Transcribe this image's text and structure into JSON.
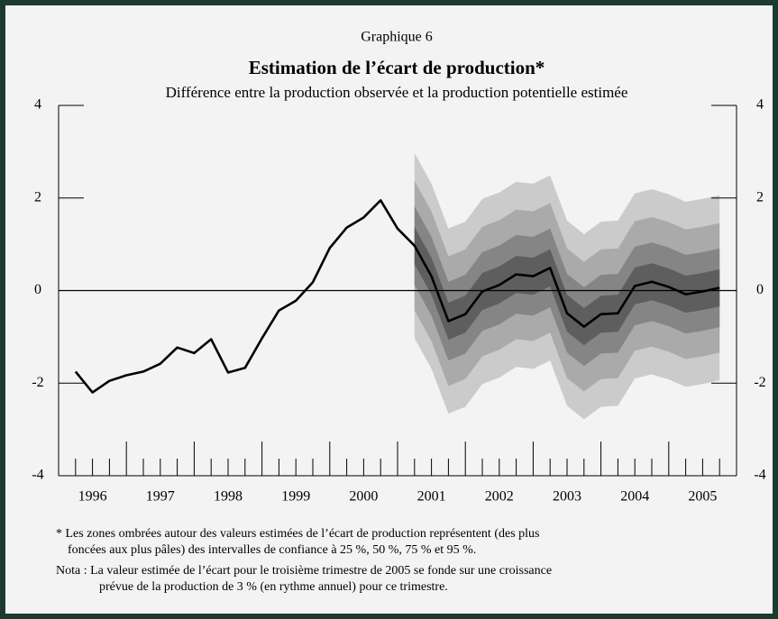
{
  "chart_data": {
    "type": "fan",
    "header": "Graphique 6",
    "title": "Estimation de l’écart de production*",
    "subtitle": "Différence entre la production observée et la production potentielle estimée",
    "categories": [
      null,
      null,
      null,
      null,
      null,
      null,
      null,
      null,
      null,
      null,
      null,
      null,
      null,
      null,
      null,
      null,
      null,
      null,
      null,
      null,
      null,
      null,
      null,
      null,
      null,
      null,
      null,
      null,
      null,
      null,
      null,
      null,
      null,
      null,
      null,
      null,
      null,
      null,
      null
    ],
    "year_labels": [
      "1996",
      "1997",
      "1998",
      "1999",
      "2000",
      "2001",
      "2002",
      "2003",
      "2004",
      "2005"
    ],
    "series": [
      {
        "color": "#000000",
        "values": [
          -1.75,
          -2.2,
          -1.95,
          -1.83,
          -1.75,
          -1.58,
          -1.23,
          -1.35,
          -1.05,
          -1.77,
          -1.67,
          -1.03,
          -0.43,
          -0.22,
          0.18,
          0.92,
          1.36,
          1.58,
          1.95,
          1.34,
          0.97,
          0.31,
          -0.66,
          -0.51,
          -0.02,
          0.12,
          0.35,
          0.31,
          0.49,
          -0.49,
          -0.78,
          -0.51,
          -0.49,
          0.1,
          0.19,
          0.08,
          -0.08,
          -0.02,
          0.06
        ]
      }
    ],
    "bands": [
      {
        "color": "#cbcbcb",
        "upper": [
          null,
          null,
          null,
          null,
          null,
          null,
          null,
          null,
          null,
          null,
          null,
          null,
          null,
          null,
          null,
          null,
          null,
          null,
          null,
          null,
          2.97,
          2.31,
          1.34,
          1.49,
          1.98,
          2.12,
          2.35,
          2.31,
          2.49,
          1.51,
          1.22,
          1.49,
          1.51,
          2.1,
          2.19,
          2.08,
          1.92,
          1.98,
          2.06
        ],
        "lower": [
          null,
          null,
          null,
          null,
          null,
          null,
          null,
          null,
          null,
          null,
          null,
          null,
          null,
          null,
          null,
          null,
          null,
          null,
          null,
          null,
          -1.03,
          -1.69,
          -2.66,
          -2.51,
          -2.02,
          -1.88,
          -1.65,
          -1.69,
          -1.51,
          -2.49,
          -2.78,
          -2.51,
          -2.49,
          -1.9,
          -1.81,
          -1.92,
          -2.08,
          -2.02,
          -1.94
        ]
      },
      {
        "color": "#aaaaaa",
        "upper": [
          null,
          null,
          null,
          null,
          null,
          null,
          null,
          null,
          null,
          null,
          null,
          null,
          null,
          null,
          null,
          null,
          null,
          null,
          null,
          null,
          2.37,
          1.71,
          0.74,
          0.89,
          1.38,
          1.52,
          1.75,
          1.71,
          1.89,
          0.91,
          0.62,
          0.89,
          0.91,
          1.5,
          1.59,
          1.48,
          1.32,
          1.38,
          1.46
        ],
        "lower": [
          null,
          null,
          null,
          null,
          null,
          null,
          null,
          null,
          null,
          null,
          null,
          null,
          null,
          null,
          null,
          null,
          null,
          null,
          null,
          null,
          -0.43,
          -1.09,
          -2.06,
          -1.91,
          -1.42,
          -1.28,
          -1.05,
          -1.09,
          -0.91,
          -1.89,
          -2.18,
          -1.91,
          -1.89,
          -1.3,
          -1.21,
          -1.32,
          -1.48,
          -1.42,
          -1.34
        ]
      },
      {
        "color": "#858585",
        "upper": [
          null,
          null,
          null,
          null,
          null,
          null,
          null,
          null,
          null,
          null,
          null,
          null,
          null,
          null,
          null,
          null,
          null,
          null,
          null,
          null,
          1.82,
          1.16,
          0.19,
          0.34,
          0.83,
          0.97,
          1.2,
          1.16,
          1.34,
          0.36,
          0.07,
          0.34,
          0.36,
          0.95,
          1.04,
          0.93,
          0.77,
          0.83,
          0.91
        ],
        "lower": [
          null,
          null,
          null,
          null,
          null,
          null,
          null,
          null,
          null,
          null,
          null,
          null,
          null,
          null,
          null,
          null,
          null,
          null,
          null,
          null,
          0.12,
          -0.54,
          -1.51,
          -1.36,
          -0.87,
          -0.73,
          -0.5,
          -0.54,
          -0.36,
          -1.34,
          -1.63,
          -1.36,
          -1.34,
          -0.75,
          -0.66,
          -0.77,
          -0.93,
          -0.87,
          -0.79
        ]
      },
      {
        "color": "#5e5e5e",
        "upper": [
          null,
          null,
          null,
          null,
          null,
          null,
          null,
          null,
          null,
          null,
          null,
          null,
          null,
          null,
          null,
          null,
          null,
          null,
          null,
          null,
          1.37,
          0.71,
          -0.26,
          -0.11,
          0.38,
          0.52,
          0.75,
          0.71,
          0.89,
          -0.09,
          -0.38,
          -0.11,
          -0.09,
          0.5,
          0.59,
          0.48,
          0.32,
          0.38,
          0.46
        ],
        "lower": [
          null,
          null,
          null,
          null,
          null,
          null,
          null,
          null,
          null,
          null,
          null,
          null,
          null,
          null,
          null,
          null,
          null,
          null,
          null,
          null,
          0.57,
          -0.09,
          -1.06,
          -0.91,
          -0.42,
          -0.28,
          -0.05,
          -0.09,
          0.09,
          -0.89,
          -1.18,
          -0.91,
          -0.89,
          -0.3,
          -0.21,
          -0.32,
          -0.48,
          -0.42,
          -0.34
        ]
      }
    ],
    "ylim": [
      -4,
      4
    ],
    "yticks": [
      -4,
      -2,
      0,
      2,
      4
    ],
    "y2lim": [
      -4,
      4
    ],
    "y2ticks": [
      -4,
      -2,
      0,
      2,
      4
    ],
    "notes": [
      "*  Les zones ombrées autour des valeurs estimées de l’écart de production représentent (des plus",
      "foncées aux plus pâles) des intervalles de confiance à 25 %, 50 %, 75 % et 95 %.",
      "Nota :  La valeur estimée de l’écart pour le troisième trimestre de 2005 se fonde sur une croissance",
      "prévue de la production de 3 % (en rythme annuel) pour ce trimestre."
    ]
  }
}
